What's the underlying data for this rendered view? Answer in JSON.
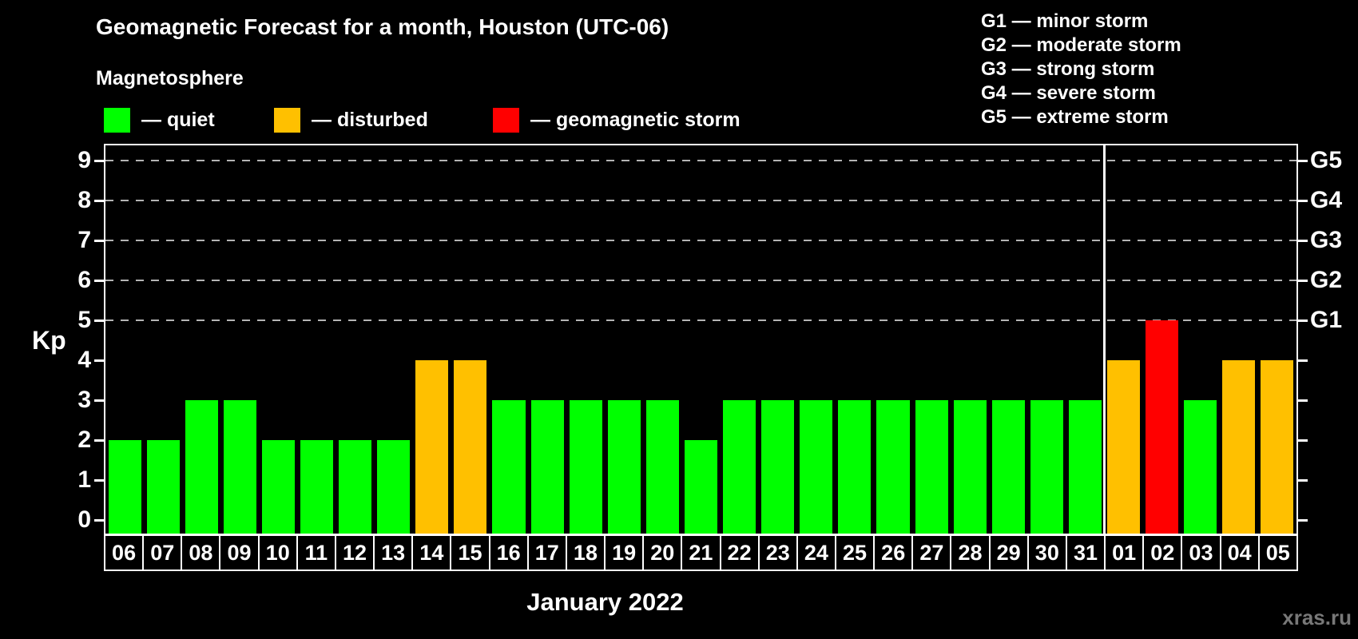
{
  "title": "Geomagnetic Forecast for a month, Houston (UTC-06)",
  "subtitle": "Magnetosphere",
  "legend": {
    "items": [
      {
        "key": "quiet",
        "label": "— quiet"
      },
      {
        "key": "disturbed",
        "label": "— disturbed"
      },
      {
        "key": "storm",
        "label": "— geomagnetic storm"
      }
    ]
  },
  "storm_scale_legend": [
    "G1 — minor storm",
    "G2 — moderate storm",
    "G3 — strong storm",
    "G4 — severe storm",
    "G5 — extreme storm"
  ],
  "watermark": "xras.ru",
  "chart_data": {
    "type": "bar",
    "title": "Geomagnetic Forecast for a month, Houston (UTC-06)",
    "xlabel": "January 2022",
    "ylabel": "Kp",
    "ylim": [
      0,
      9
    ],
    "grid": "dashed horizontal lines at Kp 5-9",
    "legend_position": "top-left",
    "categories": [
      "06",
      "07",
      "08",
      "09",
      "10",
      "11",
      "12",
      "13",
      "14",
      "15",
      "16",
      "17",
      "18",
      "19",
      "20",
      "21",
      "22",
      "23",
      "24",
      "25",
      "26",
      "27",
      "28",
      "29",
      "30",
      "31",
      "01",
      "02",
      "03",
      "04",
      "05"
    ],
    "values": [
      2,
      2,
      3,
      3,
      2,
      2,
      2,
      2,
      4,
      4,
      3,
      3,
      3,
      3,
      3,
      2,
      3,
      3,
      3,
      3,
      3,
      3,
      3,
      3,
      3,
      3,
      4,
      5,
      3,
      4,
      4
    ],
    "statuses": [
      "quiet",
      "quiet",
      "quiet",
      "quiet",
      "quiet",
      "quiet",
      "quiet",
      "quiet",
      "disturbed",
      "disturbed",
      "quiet",
      "quiet",
      "quiet",
      "quiet",
      "quiet",
      "quiet",
      "quiet",
      "quiet",
      "quiet",
      "quiet",
      "quiet",
      "quiet",
      "quiet",
      "quiet",
      "quiet",
      "quiet",
      "disturbed",
      "storm",
      "quiet",
      "disturbed",
      "disturbed"
    ],
    "status_colors": {
      "quiet": "#00ff00",
      "disturbed": "#ffc000",
      "storm": "#ff0000"
    },
    "y_tick_labels": [
      "0",
      "1",
      "2",
      "3",
      "4",
      "5",
      "6",
      "7",
      "8",
      "9"
    ],
    "gridline_levels": [
      5,
      6,
      7,
      8,
      9
    ],
    "right_axis_labels": [
      {
        "kp": 5,
        "label": "G1"
      },
      {
        "kp": 6,
        "label": "G2"
      },
      {
        "kp": 7,
        "label": "G3"
      },
      {
        "kp": 8,
        "label": "G4"
      },
      {
        "kp": 9,
        "label": "G5"
      }
    ],
    "month_separator_after_category_index": 25
  }
}
